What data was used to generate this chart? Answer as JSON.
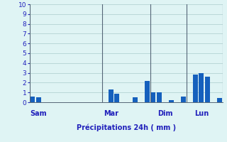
{
  "title": "",
  "xlabel": "Précipitations 24h ( mm )",
  "ylabel": "",
  "ylim": [
    0,
    10
  ],
  "bar_color": "#1560bd",
  "background_color": "#dff4f4",
  "grid_color": "#aacccc",
  "axis_label_color": "#2020bb",
  "tick_color": "#2020bb",
  "values": [
    0.6,
    0.5,
    0,
    0,
    0,
    0,
    0,
    0,
    0,
    0,
    0,
    0,
    0,
    1.3,
    0.9,
    0,
    0,
    0.5,
    0,
    2.2,
    1.0,
    1.0,
    0,
    0.2,
    0,
    0.6,
    0,
    2.8,
    3.0,
    2.6,
    0,
    0.4
  ],
  "day_labels": [
    "Sam",
    "Mar",
    "Dim",
    "Lun"
  ],
  "yticks": [
    0,
    1,
    2,
    3,
    4,
    5,
    6,
    7,
    8,
    9,
    10
  ]
}
